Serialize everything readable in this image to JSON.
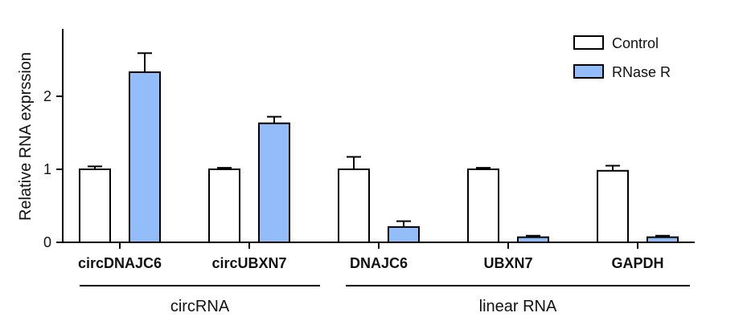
{
  "chart_data": {
    "type": "bar",
    "ylabel": "Relative RNA exprssion",
    "xlabel": "",
    "ylim": [
      0,
      2.9
    ],
    "yticks": [
      0,
      1,
      2
    ],
    "categories": [
      "circDNAJC6",
      "circUBXN7",
      "DNAJC6",
      "UBXN7",
      "GAPDH"
    ],
    "series": [
      {
        "name": "Control",
        "color": "#ffffff",
        "values": [
          1.0,
          1.0,
          1.0,
          1.0,
          0.98
        ],
        "errors": [
          0.04,
          0.02,
          0.17,
          0.02,
          0.07
        ]
      },
      {
        "name": "RNase R",
        "color": "#92bdf8",
        "values": [
          2.33,
          1.63,
          0.21,
          0.07,
          0.07
        ],
        "errors": [
          0.26,
          0.09,
          0.08,
          0.02,
          0.02
        ]
      }
    ],
    "groups": [
      {
        "label": "circRNA",
        "categories": [
          "circDNAJC6",
          "circUBXN7"
        ]
      },
      {
        "label": "linear RNA",
        "categories": [
          "DNAJC6",
          "UBXN7",
          "GAPDH"
        ]
      }
    ],
    "legend_position": "top-right",
    "grid": false
  }
}
